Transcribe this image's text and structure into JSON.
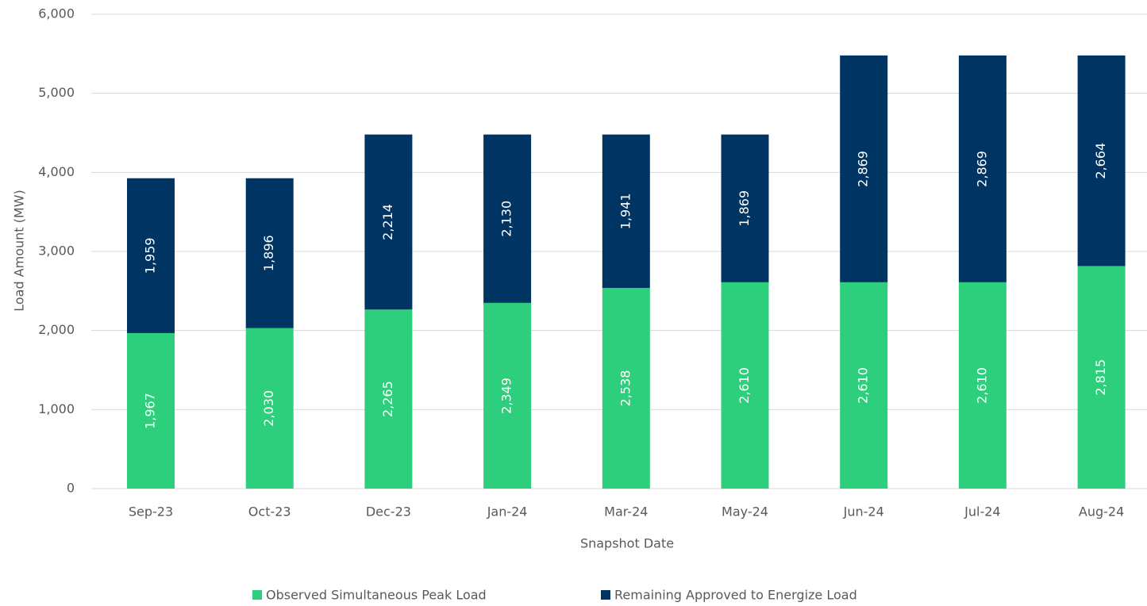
{
  "chart_data": {
    "type": "stacked_bar",
    "categories": [
      "Sep-23",
      "Oct-23",
      "Dec-23",
      "Jan-24",
      "Mar-24",
      "May-24",
      "Jun-24",
      "Jul-24",
      "Aug-24"
    ],
    "series": [
      {
        "name": "Observed Simultaneous Peak Load",
        "color": "#2ecf7c",
        "values": [
          1967,
          2030,
          2265,
          2349,
          2538,
          2610,
          2610,
          2610,
          2815
        ],
        "value_labels": [
          "1,967",
          "2,030",
          "2,265",
          "2,349",
          "2,538",
          "2,610",
          "2,610",
          "2,610",
          "2,815"
        ]
      },
      {
        "name": "Remaining Approved to Energize Load",
        "color": "#003462",
        "values": [
          1959,
          1896,
          2214,
          2130,
          1941,
          1869,
          2869,
          2869,
          2664
        ],
        "value_labels": [
          "1,959",
          "1,896",
          "2,214",
          "2,130",
          "1,941",
          "1,869",
          "2,869",
          "2,869",
          "2,664"
        ]
      }
    ],
    "ylabel": "Load Amount (MW)",
    "xlabel": "Snapshot Date",
    "ylim": [
      0,
      6000
    ],
    "yticks": [
      0,
      {
        "value": 1000,
        "label": "1,000"
      },
      {
        "value": 2000,
        "label": "2,000"
      },
      {
        "value": 3000,
        "label": "3,000"
      },
      {
        "value": 4000,
        "label": "4,000"
      },
      {
        "value": 5000,
        "label": "5,000"
      },
      {
        "value": 6000,
        "label": "6,000"
      }
    ],
    "grid": true,
    "legend": "bottom"
  }
}
